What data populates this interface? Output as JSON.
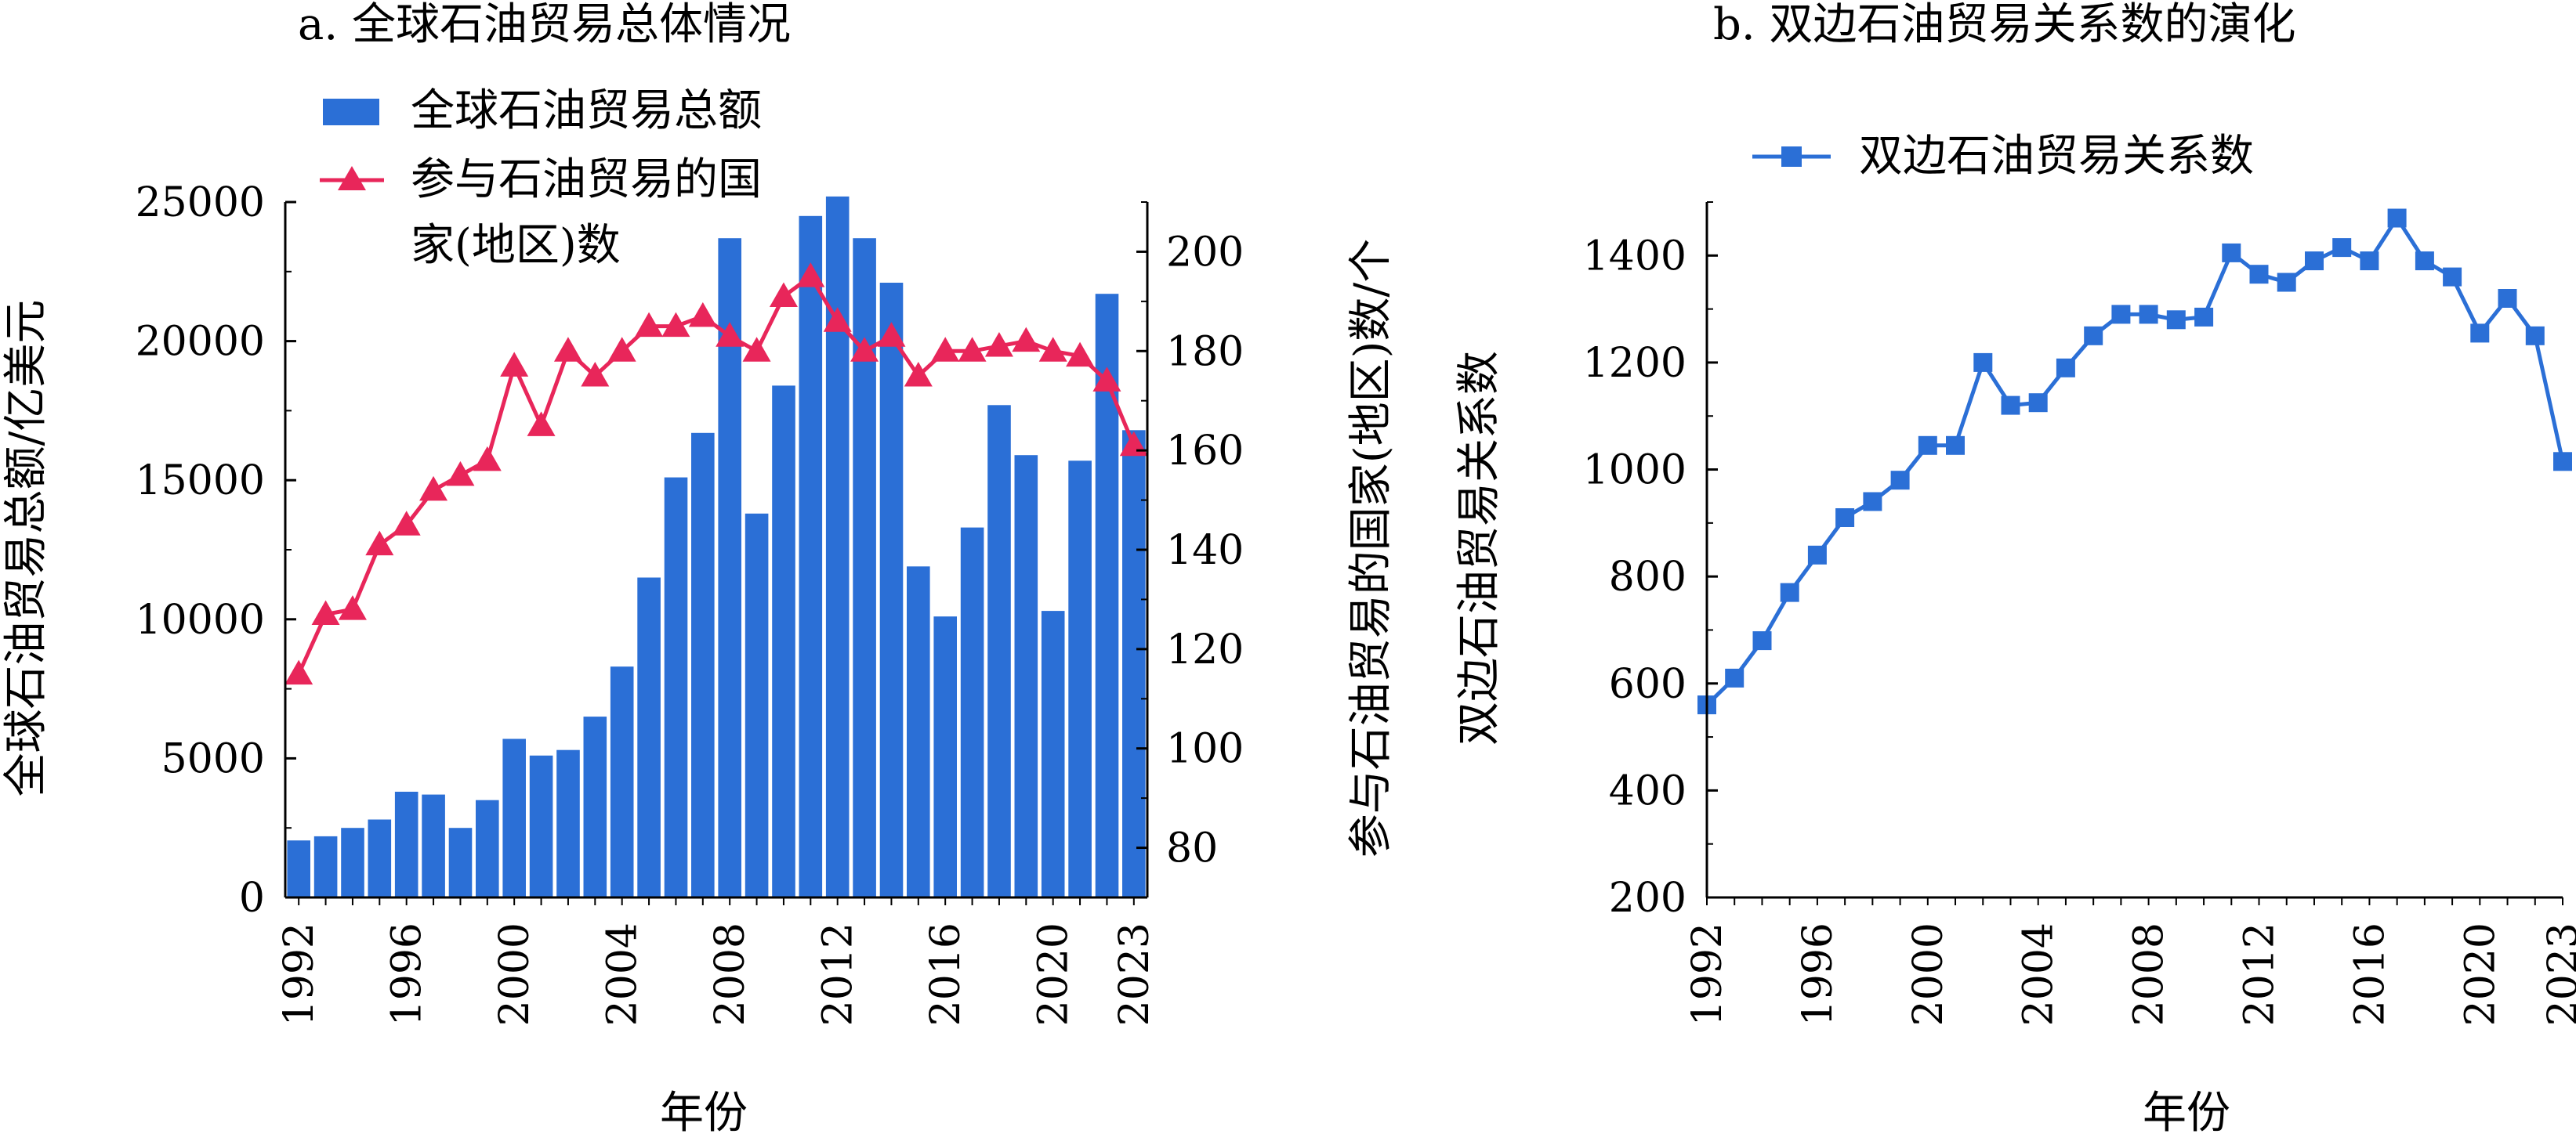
{
  "colors": {
    "bar": "#2b6fd6",
    "line_a": "#e8265a",
    "line_b": "#2b6fd6",
    "axis": "#000000"
  },
  "chart_data": [
    {
      "type": "bar",
      "title": "a. 全球石油贸易总体情况",
      "xlabel": "年份",
      "ylabel": "全球石油贸易总额/亿美元",
      "y2label": "参与石油贸易的国家(地区)数/个",
      "x": [
        1992,
        1993,
        1994,
        1995,
        1996,
        1997,
        1998,
        1999,
        2000,
        2001,
        2002,
        2003,
        2004,
        2005,
        2006,
        2007,
        2008,
        2009,
        2010,
        2011,
        2012,
        2013,
        2014,
        2015,
        2016,
        2017,
        2018,
        2019,
        2020,
        2021,
        2022,
        2023
      ],
      "xticks": [
        "1992",
        "1996",
        "2000",
        "2004",
        "2008",
        "2012",
        "2016",
        "2020",
        "2023"
      ],
      "ylim": [
        0,
        25000
      ],
      "yticks": [
        "0",
        "5000",
        "10000",
        "15000",
        "20000",
        "25000"
      ],
      "y2lim": [
        70,
        210
      ],
      "y2ticks": [
        "80",
        "100",
        "120",
        "140",
        "160",
        "180",
        "200"
      ],
      "legend": [
        "全球石油贸易总额",
        "参与石油贸易的国",
        "家(地区)数"
      ],
      "legend_position": "top-left",
      "series": [
        {
          "name": "全球石油贸易总额",
          "type": "bar",
          "axis": "left",
          "values": [
            2050,
            2200,
            2500,
            2800,
            3800,
            3700,
            2500,
            3500,
            5700,
            5100,
            5300,
            6500,
            8300,
            11500,
            15100,
            16700,
            23700,
            13800,
            18400,
            24500,
            25200,
            23700,
            22100,
            11900,
            10100,
            13300,
            17700,
            15900,
            10300,
            15700,
            21700,
            16800
          ]
        },
        {
          "name": "参与石油贸易的国家(地区)数",
          "type": "line",
          "axis": "right",
          "values": [
            115,
            127,
            128,
            141,
            145,
            152,
            155,
            158,
            177,
            165,
            180,
            175,
            180,
            185,
            185,
            187,
            183,
            180,
            191,
            195,
            186,
            180,
            183,
            175,
            180,
            180,
            181,
            182,
            180,
            179,
            174,
            161
          ]
        }
      ]
    },
    {
      "type": "line",
      "title": "b. 双边石油贸易关系数的演化",
      "xlabel": "年份",
      "ylabel": "双边石油贸易关系数",
      "x": [
        1992,
        1993,
        1994,
        1995,
        1996,
        1997,
        1998,
        1999,
        2000,
        2001,
        2002,
        2003,
        2004,
        2005,
        2006,
        2007,
        2008,
        2009,
        2010,
        2011,
        2012,
        2013,
        2014,
        2015,
        2016,
        2017,
        2018,
        2019,
        2020,
        2021,
        2022,
        2023
      ],
      "xticks": [
        "1992",
        "1996",
        "2000",
        "2004",
        "2008",
        "2012",
        "2016",
        "2020",
        "2023"
      ],
      "ylim": [
        200,
        1500
      ],
      "yticks": [
        "200",
        "400",
        "600",
        "800",
        "1000",
        "1200",
        "1400"
      ],
      "legend": [
        "双边石油贸易关系数"
      ],
      "legend_position": "top-left",
      "series": [
        {
          "name": "双边石油贸易关系数",
          "values": [
            560,
            610,
            680,
            770,
            840,
            910,
            940,
            980,
            1045,
            1045,
            1200,
            1120,
            1125,
            1190,
            1250,
            1290,
            1290,
            1280,
            1285,
            1405,
            1365,
            1350,
            1390,
            1415,
            1390,
            1470,
            1390,
            1360,
            1255,
            1320,
            1250,
            1015
          ]
        }
      ]
    }
  ]
}
